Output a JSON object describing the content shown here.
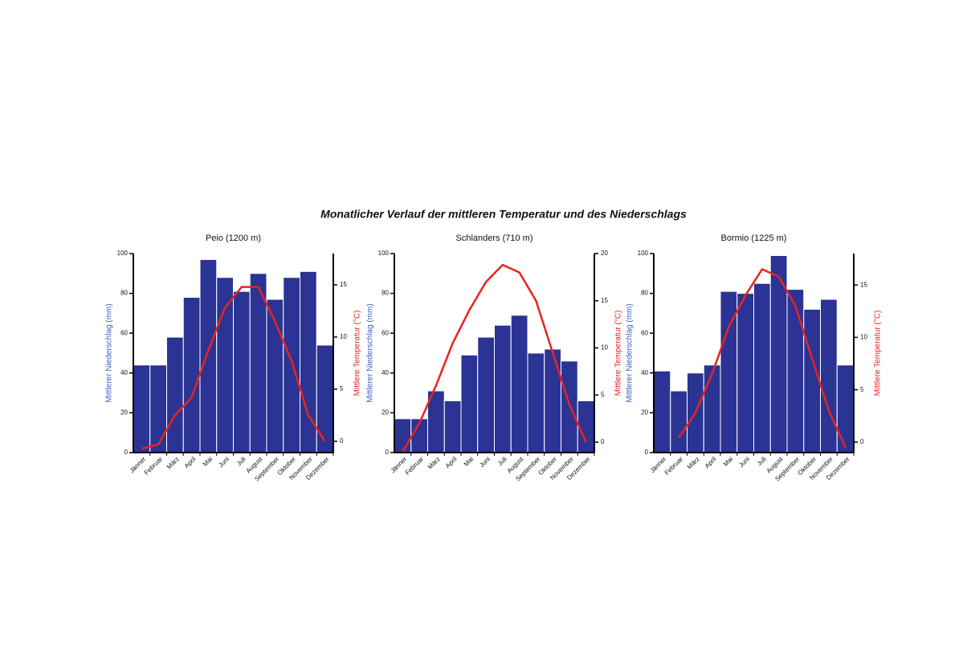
{
  "title": "Monatlicher Verlauf der mittleren Temperatur und des Niederschlags",
  "chart_data": [
    {
      "type": "combo",
      "title": "Peio (1200 m)",
      "categories": [
        "Jänner",
        "Februar",
        "März",
        "April",
        "Mai",
        "Juni",
        "Juli",
        "August",
        "September",
        "Oktober",
        "November",
        "Dezember"
      ],
      "ylabel": "Mittlerer Niederschlag (mm)",
      "y2label": "Mittlere Temperatur (°C)",
      "ylim": [
        0,
        100
      ],
      "yticks": [
        0,
        20,
        40,
        60,
        80,
        100
      ],
      "y2lim": [
        -1.08,
        18
      ],
      "y2ticks": [
        0,
        5,
        10,
        15
      ],
      "series": [
        {
          "type": "bar",
          "color": "#2b3394",
          "values": [
            44,
            44,
            58,
            78,
            97,
            88,
            81,
            90,
            77,
            88,
            91,
            54
          ]
        },
        {
          "type": "line",
          "axis": "y2",
          "color": "#e8231e",
          "values": [
            -0.7,
            -0.3,
            2.5,
            4.2,
            8.7,
            12.8,
            14.8,
            14.8,
            11.5,
            7.7,
            2.5,
            0
          ]
        }
      ]
    },
    {
      "type": "combo",
      "title": "Schlanders (710 m)",
      "categories": [
        "Jänner",
        "Februar",
        "März",
        "April",
        "Mai",
        "Juni",
        "Juli",
        "August",
        "September",
        "Oktober",
        "November",
        "Dezember"
      ],
      "ylabel": "Mittlerer Niederschlag (mm)",
      "y2label": "Mittlere Temperatur (°C)",
      "ylim": [
        0,
        100
      ],
      "yticks": [
        0,
        20,
        40,
        60,
        80,
        100
      ],
      "y2lim": [
        -1.1,
        20
      ],
      "y2ticks": [
        0,
        5,
        10,
        15,
        20
      ],
      "series": [
        {
          "type": "bar",
          "color": "#2b3394",
          "values": [
            17,
            17,
            31,
            26,
            49,
            58,
            64,
            69,
            50,
            52,
            46,
            26
          ]
        },
        {
          "type": "line",
          "axis": "y2",
          "color": "#e8231e",
          "values": [
            -1,
            2,
            6,
            10.5,
            14,
            17,
            18.8,
            18,
            15,
            9.5,
            4,
            0
          ]
        }
      ]
    },
    {
      "type": "combo",
      "title": "Bormio (1225 m)",
      "categories": [
        "Jänner",
        "Februar",
        "März",
        "April",
        "Mai",
        "Juni",
        "Juli",
        "August",
        "September",
        "Oktober",
        "November",
        "Dezember"
      ],
      "ylabel": "Mittlerer Niederschlag (mm)",
      "y2label": "Mittlere Temperatur (°C)",
      "ylim": [
        0,
        100
      ],
      "yticks": [
        0,
        20,
        40,
        60,
        80,
        100
      ],
      "y2lim": [
        -1,
        18
      ],
      "y2ticks": [
        0,
        5,
        10,
        15
      ],
      "series": [
        {
          "type": "bar",
          "color": "#2b3394",
          "values": [
            41,
            31,
            40,
            44,
            81,
            80,
            85,
            99,
            82,
            72,
            77,
            44
          ]
        },
        {
          "type": "line",
          "axis": "y2",
          "color": "#e8231e",
          "values": [
            null,
            0.4,
            2.8,
            6.5,
            11,
            14,
            16.5,
            15.8,
            13,
            8,
            3,
            -0.5
          ]
        }
      ]
    }
  ]
}
